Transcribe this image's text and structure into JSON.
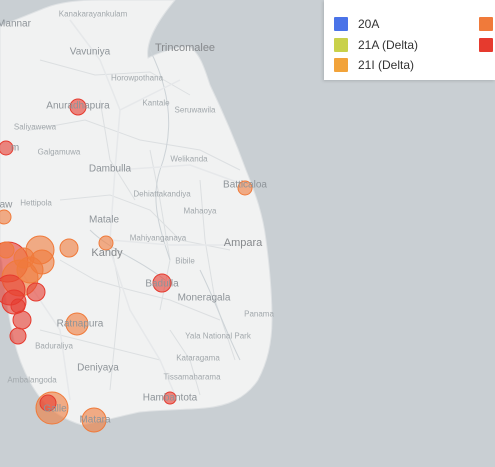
{
  "legend": {
    "items": [
      {
        "label": "20A",
        "color": "#4a73e8"
      },
      {
        "label": "21A (Delta)",
        "color": "#c9d14a"
      },
      {
        "label": "21I (Delta)",
        "color": "#f2a33a"
      },
      {
        "label": "",
        "color": "#f07a3a"
      },
      {
        "label": "",
        "color": "#e63a2e"
      }
    ]
  },
  "places": {
    "mannar": "Mannar",
    "kanakarayankulam": "Kanakarayankulam",
    "vavuniya": "Vavuniya",
    "horowpothana": "Horowpothana",
    "trincomalee": "Trincomalee",
    "anuradhapura": "Anuradhapura",
    "kantale": "Kantale",
    "seruwawila": "Seruwawila",
    "saliyawewa": "Saliyawewa",
    "galgamuwa": "Galgamuwa",
    "welikanda": "Welikanda",
    "dambulla": "Dambulla",
    "batticaloa": "Batticaloa",
    "dehiattakandiya": "Dehiattakandiya",
    "hettipola": "Hettipola",
    "matale": "Matale",
    "mahaoya": "Mahaoya",
    "mahiyanganaya": "Mahiyanganaya",
    "ampara": "Ampara",
    "kandy": "Kandy",
    "bibile": "Bibile",
    "badulla": "Badulla",
    "moneragala": "Moneragala",
    "panama": "Panama",
    "ratnapura": "Ratnapura",
    "yala_national_park": "Yala National Park",
    "baduraliya": "Baduraliya",
    "kataragama": "Kataragama",
    "deniyaya": "Deniyaya",
    "tissamaharama": "Tissamaharama",
    "ambalangoda": "Ambalangoda",
    "hambantota": "Hambantota",
    "galle": "Galle",
    "matara": "Matara",
    "edge_m": "m",
    "edge_aw": "aw"
  },
  "markers": [
    {
      "color": "#e63a2e",
      "r": 8,
      "count": 1
    },
    {
      "color": "#e63a2e",
      "r": 7,
      "count": 1
    },
    {
      "color": "#f07a3a",
      "r": 7,
      "count": 1
    },
    {
      "color": "#f07a3a",
      "r": 9,
      "count": 1
    },
    {
      "color": "#f07a3a",
      "r": 14,
      "count": 1
    },
    {
      "color": "#f07a3a",
      "r": 7,
      "count": 1
    },
    {
      "color": "#f07a3a",
      "r": 7,
      "count": 1
    },
    {
      "color": "#e63a2e",
      "r": 9,
      "count": 1
    },
    {
      "color": "#f07a3a",
      "r": 11,
      "count": 1
    },
    {
      "color": "#e63a2e",
      "r": 9,
      "count": 1
    },
    {
      "color": "#e63a2e",
      "r": 8,
      "count": 1
    },
    {
      "color": "#f07a3a",
      "r": 16,
      "count": 1
    },
    {
      "color": "#f07a3a",
      "r": 12,
      "count": 1
    },
    {
      "color": "#e63a2e",
      "r": 6,
      "count": 1
    },
    {
      "color": "#e63a2e",
      "r": 8,
      "count": 1
    },
    {
      "color": "#e63a2e",
      "r": 20,
      "count": 1
    },
    {
      "color": "#f07a3a",
      "r": 18,
      "count": 1
    },
    {
      "color": "#e63a2e",
      "r": 15,
      "count": 1
    },
    {
      "color": "#f07a3a",
      "r": 13,
      "count": 1
    },
    {
      "color": "#e63a2e",
      "r": 12,
      "count": 1
    },
    {
      "color": "#f07a3a",
      "r": 10,
      "count": 1
    },
    {
      "color": "#e63a2e",
      "r": 9,
      "count": 1
    },
    {
      "color": "#f07a3a",
      "r": 8,
      "count": 1
    },
    {
      "color": "#e63a2e",
      "r": 7,
      "count": 1
    },
    {
      "color": "#f07a3a",
      "r": 12,
      "count": 1
    }
  ]
}
